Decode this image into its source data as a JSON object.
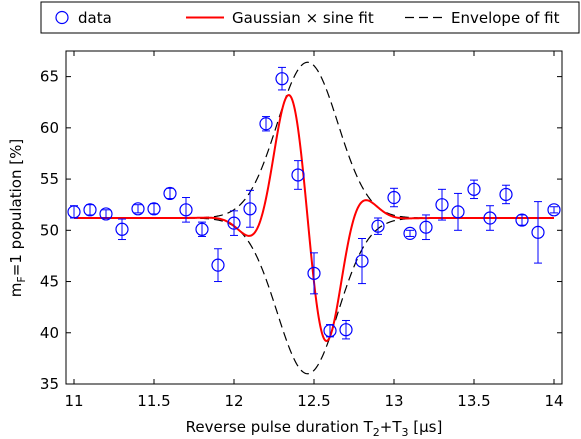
{
  "chart_data": {
    "type": "scatter",
    "title": "",
    "xlabel": "Reverse pulse duration T",
    "xlabel_sub1": "2",
    "xlabel_mid": "+T",
    "xlabel_sub2": "3",
    "xlabel_unit": " [μs]",
    "ylabel_prefix": "m",
    "ylabel_sub": "F",
    "ylabel_rest": "=1 population [%]",
    "xlim": [
      10.95,
      14.05
    ],
    "ylim": [
      35,
      67.5
    ],
    "xticks": [
      11,
      11.5,
      12,
      12.5,
      13,
      13.5,
      14
    ],
    "xtick_labels": [
      "11",
      "11.5",
      "12",
      "12.5",
      "13",
      "13.5",
      "14"
    ],
    "yticks": [
      35,
      40,
      45,
      50,
      55,
      60,
      65
    ],
    "ytick_labels": [
      "35",
      "40",
      "45",
      "50",
      "55",
      "60",
      "65"
    ],
    "grid": false,
    "legend_position": "top-outside",
    "legend": {
      "data_label": "data",
      "fit_label": "Gaussian × sine fit",
      "envelope_label": "Envelope of fit"
    },
    "colors": {
      "data": "#0000ff",
      "fit": "#ff0000",
      "envelope": "#000000"
    },
    "model": {
      "offset": 51.2,
      "amplitude": 15.2,
      "center": 12.46,
      "sigma": 0.19,
      "period": 0.58
    },
    "series": [
      {
        "name": "data",
        "x": [
          11.0,
          11.1,
          11.2,
          11.3,
          11.4,
          11.5,
          11.6,
          11.7,
          11.8,
          11.9,
          12.0,
          12.1,
          12.2,
          12.3,
          12.4,
          12.5,
          12.6,
          12.7,
          12.8,
          12.9,
          13.0,
          13.1,
          13.2,
          13.3,
          13.4,
          13.5,
          13.6,
          13.7,
          13.8,
          13.9,
          14.0
        ],
        "y": [
          51.8,
          52.0,
          51.6,
          50.1,
          52.1,
          52.1,
          53.6,
          52.0,
          50.1,
          46.6,
          50.7,
          52.1,
          60.4,
          64.8,
          55.4,
          45.8,
          40.2,
          40.3,
          47.0,
          50.4,
          53.2,
          49.7,
          50.3,
          52.5,
          51.8,
          54.0,
          51.2,
          53.5,
          51.0,
          49.8,
          52.0
        ],
        "err": [
          0.6,
          0.5,
          0.4,
          1.0,
          0.4,
          0.5,
          0.5,
          1.2,
          0.7,
          1.6,
          1.2,
          1.8,
          0.7,
          1.1,
          1.4,
          2.0,
          0.6,
          0.9,
          2.2,
          0.8,
          0.9,
          0.3,
          1.2,
          1.5,
          1.8,
          0.9,
          1.2,
          0.9,
          0.5,
          3.0,
          0.3
        ]
      }
    ]
  }
}
